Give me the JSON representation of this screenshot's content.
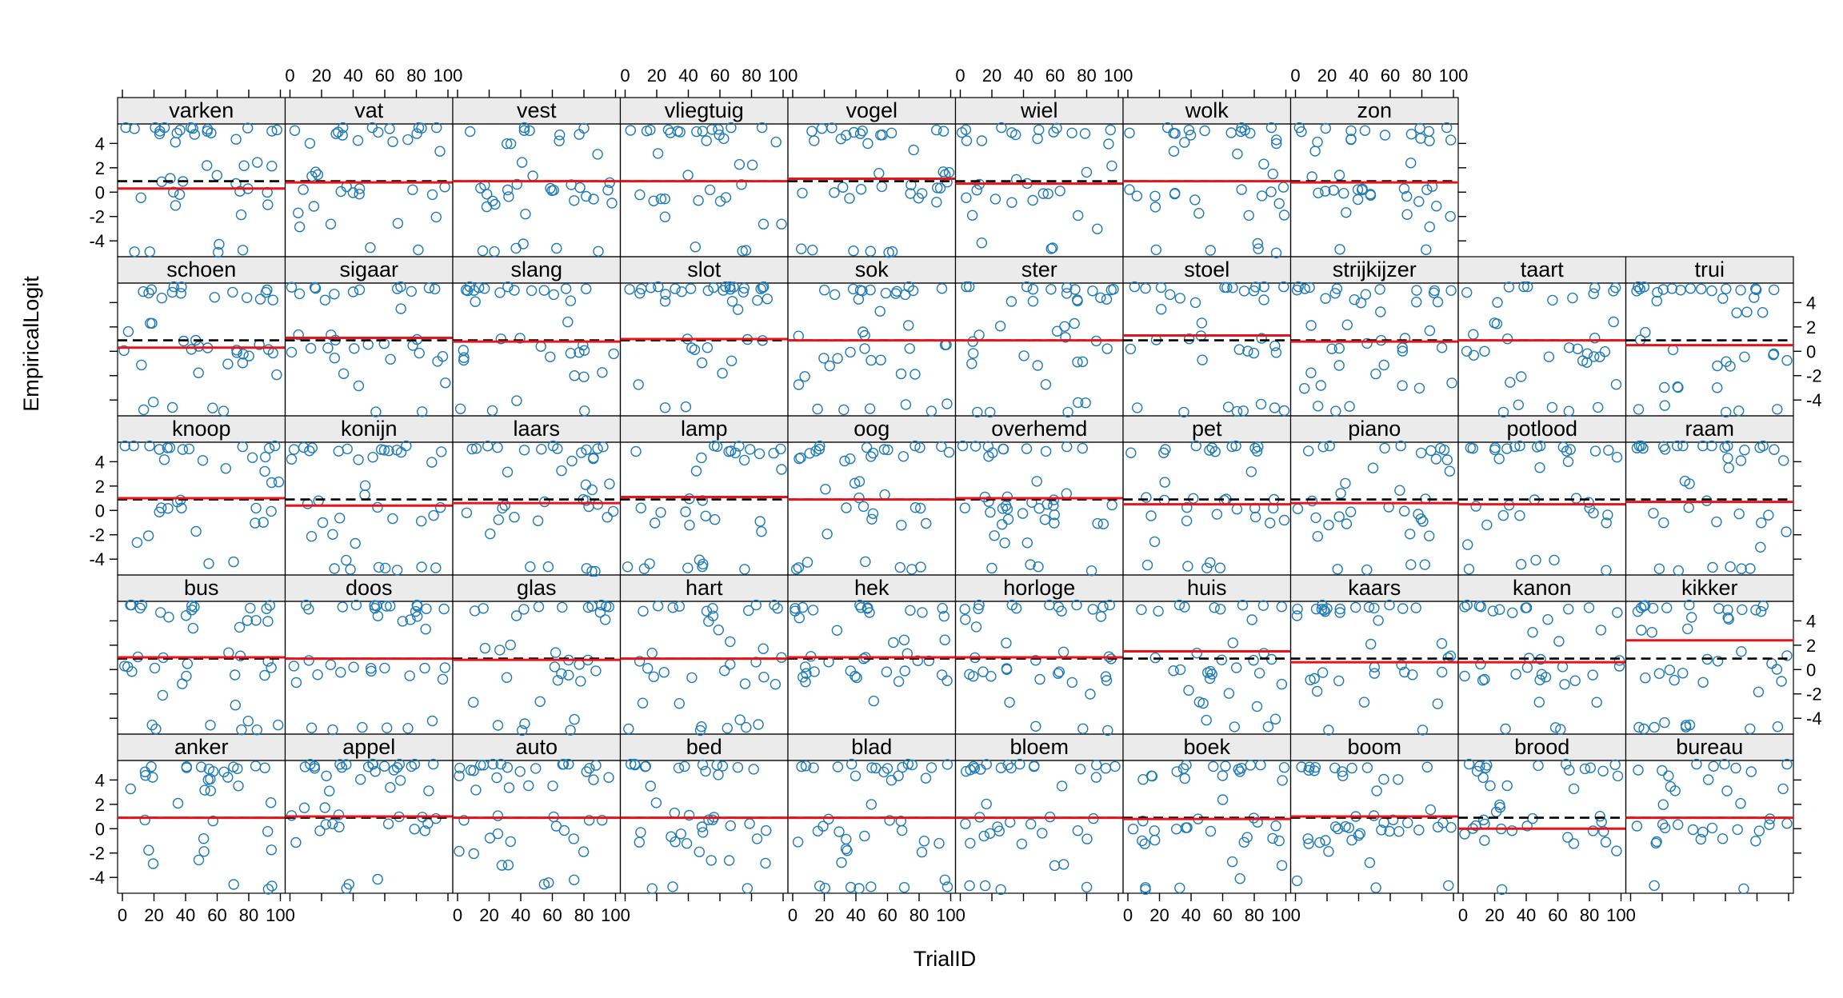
{
  "chart_data": {
    "type": "scatter",
    "xlabel": "TrialID",
    "ylabel": "EmpiricalLogit",
    "xlim": [
      0,
      100
    ],
    "ylim": [
      -5.3,
      5.6
    ],
    "x_ticks": [
      0,
      20,
      40,
      60,
      80,
      100
    ],
    "y_ticks": [
      -4,
      -2,
      0,
      2,
      4
    ],
    "colors": {
      "points": "#1f7bb6",
      "fit_line": "#e8141b",
      "reference_line": "#000000",
      "strip": "#ebebeb"
    },
    "reference_line_style": "dashed",
    "reference_line_value": 0.9,
    "layout": {
      "columns": 10,
      "rows": 5,
      "order": "bottom-to-top"
    },
    "panels": [
      {
        "name": "anker",
        "fit": 0.9
      },
      {
        "name": "appel",
        "fit": 1.0
      },
      {
        "name": "auto",
        "fit": 0.9
      },
      {
        "name": "bed",
        "fit": 0.9
      },
      {
        "name": "blad",
        "fit": 0.9
      },
      {
        "name": "bloem",
        "fit": 0.9
      },
      {
        "name": "boek",
        "fit": 0.8
      },
      {
        "name": "boom",
        "fit": 1.0
      },
      {
        "name": "brood",
        "fit": 0.0
      },
      {
        "name": "bureau",
        "fit": 0.9
      },
      {
        "name": "bus",
        "fit": 1.0
      },
      {
        "name": "doos",
        "fit": 0.9
      },
      {
        "name": "glas",
        "fit": 0.8
      },
      {
        "name": "hart",
        "fit": 0.9
      },
      {
        "name": "hek",
        "fit": 1.0
      },
      {
        "name": "horloge",
        "fit": 1.0
      },
      {
        "name": "huis",
        "fit": 1.5
      },
      {
        "name": "kaars",
        "fit": 0.6
      },
      {
        "name": "kanon",
        "fit": 0.6
      },
      {
        "name": "kikker",
        "fit": 2.4
      },
      {
        "name": "knoop",
        "fit": 1.0
      },
      {
        "name": "konijn",
        "fit": 0.4
      },
      {
        "name": "laars",
        "fit": 0.6
      },
      {
        "name": "lamp",
        "fit": 1.1
      },
      {
        "name": "oog",
        "fit": 0.9
      },
      {
        "name": "overhemd",
        "fit": 1.0
      },
      {
        "name": "pet",
        "fit": 0.5
      },
      {
        "name": "piano",
        "fit": 0.6
      },
      {
        "name": "potlood",
        "fit": 0.5
      },
      {
        "name": "raam",
        "fit": 0.7
      },
      {
        "name": "schoen",
        "fit": 0.3
      },
      {
        "name": "sigaar",
        "fit": 1.1
      },
      {
        "name": "slang",
        "fit": 0.8
      },
      {
        "name": "slot",
        "fit": 1.0
      },
      {
        "name": "sok",
        "fit": 0.9
      },
      {
        "name": "ster",
        "fit": 0.9
      },
      {
        "name": "stoel",
        "fit": 1.3
      },
      {
        "name": "strijkijzer",
        "fit": 0.8
      },
      {
        "name": "taart",
        "fit": 0.9
      },
      {
        "name": "trui",
        "fit": 0.5
      },
      {
        "name": "varken",
        "fit": 0.3
      },
      {
        "name": "vat",
        "fit": 0.8
      },
      {
        "name": "vest",
        "fit": 0.9
      },
      {
        "name": "vliegtuig",
        "fit": 0.9
      },
      {
        "name": "vogel",
        "fit": 1.1
      },
      {
        "name": "wiel",
        "fit": 0.7
      },
      {
        "name": "wolk",
        "fit": 0.9
      },
      {
        "name": "zon",
        "fit": 0.8
      }
    ]
  }
}
